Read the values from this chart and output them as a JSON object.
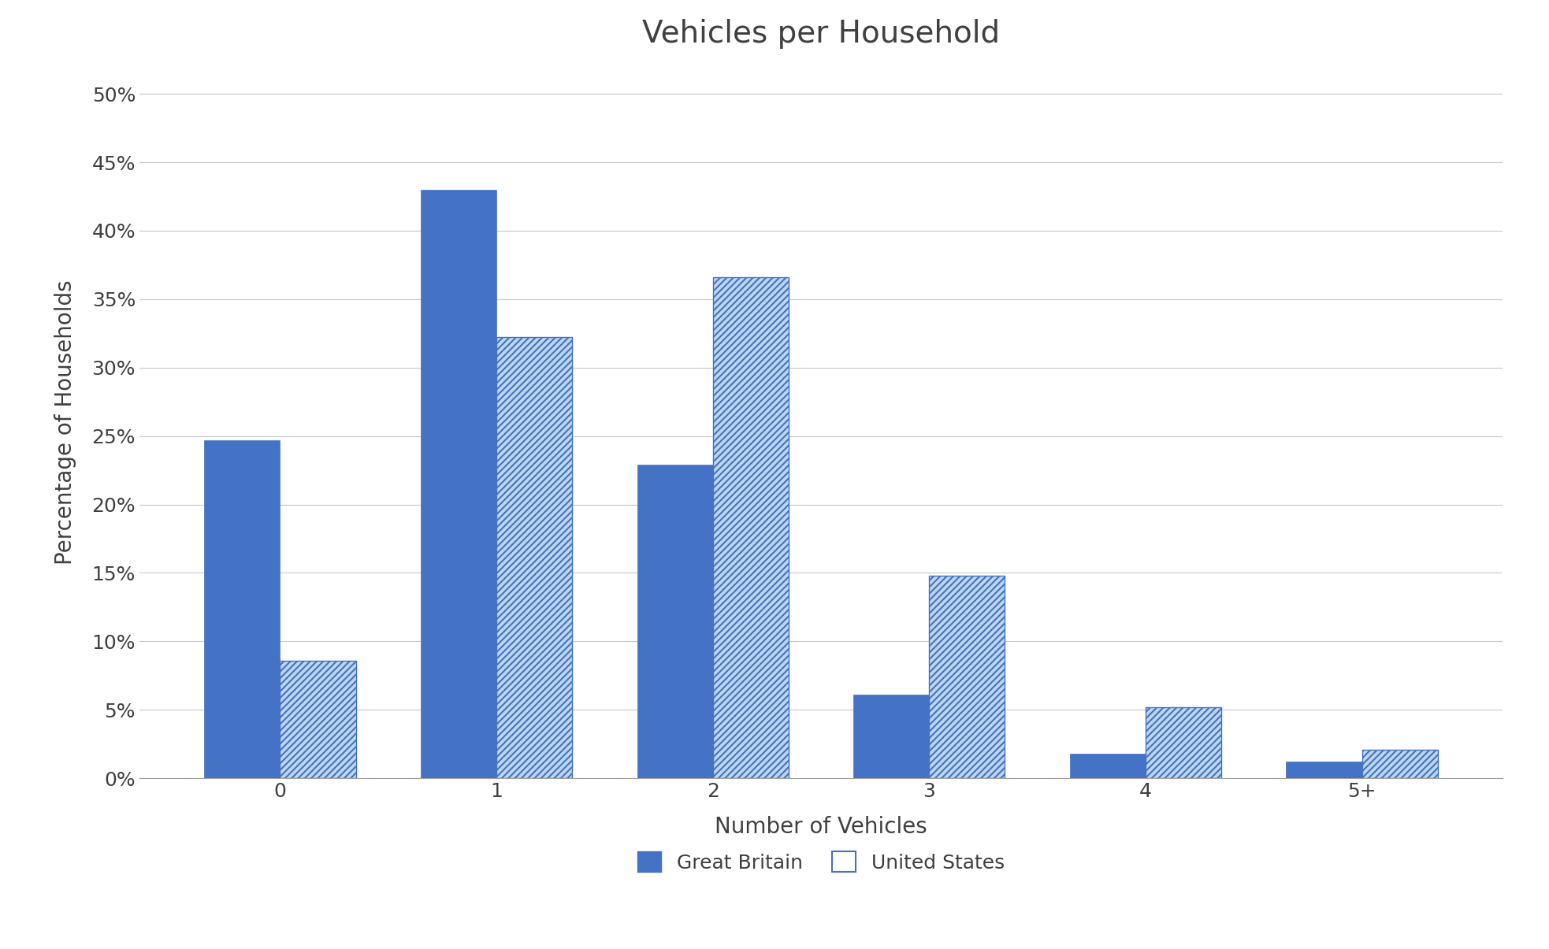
{
  "title": "Vehicles per Household",
  "xlabel": "Number of Vehicles",
  "ylabel": "Percentage of Households",
  "categories": [
    "0",
    "1",
    "2",
    "3",
    "4",
    "5+"
  ],
  "great_britain": [
    0.247,
    0.43,
    0.229,
    0.061,
    0.018,
    0.012
  ],
  "united_states": [
    0.086,
    0.322,
    0.366,
    0.148,
    0.052,
    0.021
  ],
  "gb_color": "#4472C4",
  "us_color": "#BDD7EE",
  "us_hatch": "////",
  "ylim": [
    0,
    0.52
  ],
  "yticks": [
    0.0,
    0.05,
    0.1,
    0.15,
    0.2,
    0.25,
    0.3,
    0.35,
    0.4,
    0.45,
    0.5
  ],
  "ytick_labels": [
    "0%",
    "5%",
    "10%",
    "15%",
    "20%",
    "25%",
    "30%",
    "35%",
    "40%",
    "45%",
    "50%"
  ],
  "bar_width": 0.35,
  "title_fontsize": 28,
  "axis_label_fontsize": 20,
  "tick_fontsize": 18,
  "legend_fontsize": 18,
  "background_color": "#ffffff",
  "grid_color": "#c8c8c8",
  "text_color": "#404040",
  "legend_labels": [
    "Great Britain",
    "United States"
  ],
  "border_color": "#a0a0a0"
}
